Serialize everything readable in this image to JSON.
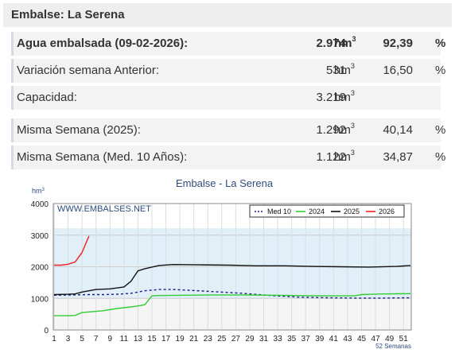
{
  "header": {
    "title": "Embalse: La Serena"
  },
  "stats": {
    "rows": [
      {
        "label": "Agua embalsada (09-02-2026):",
        "value": "2.974",
        "unit": "hm",
        "unit_sup": "3",
        "pct": "92,39",
        "pct_sign": "%"
      },
      {
        "label": "Variación semana Anterior:",
        "value": "531",
        "unit": "hm",
        "unit_sup": "3",
        "pct": "16,50",
        "pct_sign": "%"
      },
      {
        "label": "Capacidad:",
        "value": "3.219",
        "unit": "hm",
        "unit_sup": "3",
        "pct": "",
        "pct_sign": ""
      },
      {
        "label": "Misma Semana (2025):",
        "value": "1.292",
        "unit": "hm",
        "unit_sup": "3",
        "pct": "40,14",
        "pct_sign": "%"
      },
      {
        "label": "Misma Semana (Med. 10 Años):",
        "value": "1.122",
        "unit": "hm",
        "unit_sup": "3",
        "pct": "34,87",
        "pct_sign": "%"
      }
    ]
  },
  "chart_data": {
    "type": "line",
    "title": "Embalse - La Serena",
    "ylabel": "hm3",
    "watermark": "WWW.EMBALSES.NET",
    "xlabel_note": "52 Semanas",
    "ylim": [
      0,
      4000
    ],
    "xlim": [
      1,
      52
    ],
    "yticks": [
      "0",
      "1000",
      "2000",
      "3000",
      "4000"
    ],
    "xticks": [
      "1",
      "3",
      "5",
      "7",
      "9",
      "11",
      "13",
      "15",
      "17",
      "19",
      "21",
      "23",
      "25",
      "27",
      "29",
      "31",
      "33",
      "35",
      "37",
      "39",
      "41",
      "43",
      "45",
      "47",
      "49",
      "51"
    ],
    "capacity": 3219,
    "legend_position": "top-right",
    "grid": true,
    "series": [
      {
        "name": "Med 10",
        "color": "#1a1a8c",
        "dashed": true,
        "x": [
          1,
          4,
          6,
          8,
          10,
          12,
          14,
          16,
          18,
          20,
          24,
          28,
          32,
          36,
          40,
          44,
          48,
          52
        ],
        "values": [
          1100,
          1110,
          1120,
          1120,
          1130,
          1160,
          1240,
          1280,
          1280,
          1260,
          1210,
          1160,
          1090,
          1040,
          1020,
          1010,
          1010,
          1020
        ]
      },
      {
        "name": "2024",
        "color": "#33cc33",
        "dashed": false,
        "x": [
          1,
          3,
          4,
          5,
          6,
          8,
          10,
          12,
          13,
          14,
          15,
          16,
          20,
          24,
          28,
          32,
          36,
          40,
          44,
          45,
          48,
          52
        ],
        "values": [
          450,
          450,
          460,
          550,
          570,
          610,
          680,
          730,
          760,
          800,
          1080,
          1090,
          1100,
          1110,
          1110,
          1100,
          1090,
          1080,
          1080,
          1120,
          1140,
          1150
        ]
      },
      {
        "name": "2025",
        "color": "#111111",
        "dashed": false,
        "x": [
          1,
          3,
          4,
          5,
          7,
          9,
          11,
          12,
          13,
          14,
          16,
          18,
          22,
          26,
          30,
          34,
          38,
          42,
          46,
          50,
          52
        ],
        "values": [
          1120,
          1130,
          1140,
          1200,
          1280,
          1300,
          1360,
          1540,
          1870,
          1940,
          2040,
          2070,
          2060,
          2050,
          2030,
          2030,
          2010,
          2000,
          1990,
          2010,
          2040
        ]
      },
      {
        "name": "2026",
        "color": "#ee2222",
        "dashed": false,
        "x": [
          1,
          2,
          3,
          4,
          5,
          6
        ],
        "values": [
          2050,
          2050,
          2080,
          2150,
          2450,
          2974
        ]
      }
    ]
  }
}
